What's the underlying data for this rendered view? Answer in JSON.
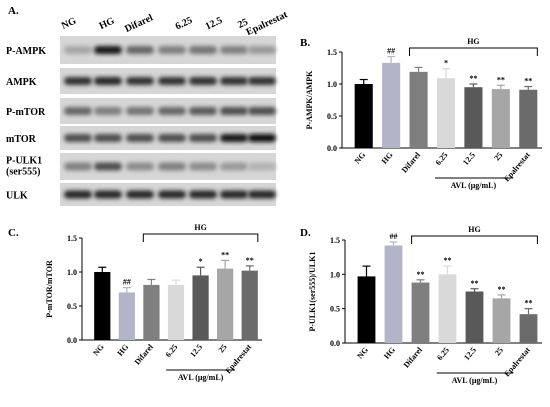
{
  "blot": {
    "panel": "A.",
    "lanes": [
      "NG",
      "HG",
      "Difarel",
      "6.25",
      "12.5",
      "25",
      "Epalrestat"
    ],
    "rows": [
      "P-AMPK",
      "AMPK",
      "P-mTOR",
      "mTOR",
      "P-ULK1\n(ser555)",
      "ULK"
    ]
  },
  "chart_data": [
    {
      "type": "bar",
      "panel": "B.",
      "y_label": "P-AMPK/AMPK",
      "categories": [
        "NG",
        "HG",
        "Difarel",
        "6.25",
        "12.5",
        "25",
        "Epalrestat"
      ],
      "values": [
        1.0,
        1.33,
        1.19,
        1.09,
        0.95,
        0.92,
        0.91
      ],
      "errors": [
        0.07,
        0.1,
        0.07,
        0.15,
        0.05,
        0.06,
        0.05
      ],
      "annotations": [
        null,
        "##",
        null,
        "*",
        "**",
        "**",
        "**"
      ],
      "colors": [
        "#000000",
        "#b4b4c8",
        "#7f7f7f",
        "#d9d9d9",
        "#595959",
        "#a6a6a6",
        "#6b6b6b"
      ],
      "group_label": "HG",
      "x_label": "AVL (μg/mL)",
      "ylim": [
        0,
        1.5
      ],
      "yticks": [
        {
          "value": 0,
          "label": "0.0"
        },
        {
          "value": 0.5,
          "label": "0.5"
        },
        {
          "value": 1,
          "label": "1.0"
        },
        {
          "value": 1.5,
          "label": "1.5"
        }
      ]
    },
    {
      "type": "bar",
      "panel": "C.",
      "y_label": "P-mTOR/mTOR",
      "categories": [
        "NG",
        "HG",
        "Difarel",
        "6.25",
        "12.5",
        "25",
        "Epalrestat"
      ],
      "values": [
        1.0,
        0.7,
        0.81,
        0.81,
        0.95,
        1.05,
        1.02
      ],
      "errors": [
        0.07,
        0.07,
        0.08,
        0.07,
        0.12,
        0.12,
        0.07
      ],
      "annotations": [
        null,
        "##",
        null,
        null,
        "*",
        "**",
        "**"
      ],
      "colors": [
        "#000000",
        "#b4b4c8",
        "#7f7f7f",
        "#d9d9d9",
        "#595959",
        "#a6a6a6",
        "#6b6b6b"
      ],
      "group_label": "HG",
      "x_label": "AVL (μg/mL)",
      "ylim": [
        0,
        1.5
      ],
      "yticks": [
        {
          "value": 0,
          "label": "0.0"
        },
        {
          "value": 0.5,
          "label": "0.5"
        },
        {
          "value": 1,
          "label": "1.0"
        },
        {
          "value": 1.5,
          "label": "1.5"
        }
      ]
    },
    {
      "type": "bar",
      "panel": "D.",
      "y_label": "P-ULK1(ser555)/ULK1",
      "categories": [
        "NG",
        "HG",
        "Difarel",
        "6.25",
        "12.5",
        "25",
        "Epalrestat"
      ],
      "values": [
        0.97,
        1.42,
        0.88,
        1.0,
        0.75,
        0.65,
        0.42
      ],
      "errors": [
        0.15,
        0.05,
        0.04,
        0.12,
        0.04,
        0.05,
        0.08
      ],
      "annotations": [
        null,
        "##",
        "**",
        "**",
        "**",
        "**",
        "**"
      ],
      "colors": [
        "#000000",
        "#b4b4c8",
        "#7f7f7f",
        "#d9d9d9",
        "#595959",
        "#a6a6a6",
        "#6b6b6b"
      ],
      "group_label": "HG",
      "x_label": "AVL (μg/mL)",
      "ylim": [
        0,
        1.5
      ],
      "yticks": [
        {
          "value": 0,
          "label": "0.0"
        },
        {
          "value": 0.5,
          "label": "0.5"
        },
        {
          "value": 1,
          "label": "1.0"
        },
        {
          "value": 1.5,
          "label": "1.5"
        }
      ]
    }
  ]
}
